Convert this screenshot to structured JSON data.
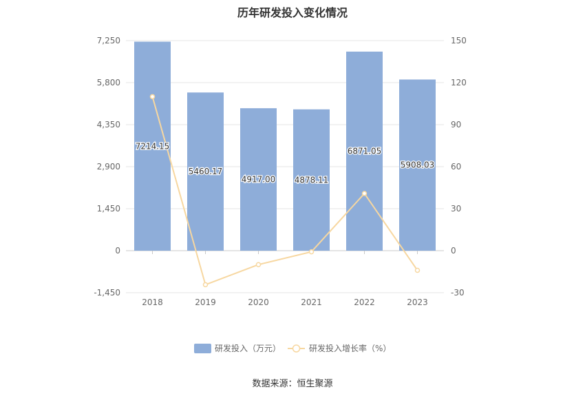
{
  "title": "历年研发投入变化情况",
  "source": "数据来源：恒生聚源",
  "colors": {
    "bar": "#8eadd9",
    "line": "#f7d7a0",
    "grid": "#e6e6e6",
    "axis_text": "#666666",
    "label_text": "#333333"
  },
  "chart_data": {
    "type": "bar",
    "title": "历年研发投入变化情况",
    "categories": [
      "2018",
      "2019",
      "2020",
      "2021",
      "2022",
      "2023"
    ],
    "series": [
      {
        "name": "研发投入（万元）",
        "type": "bar",
        "axis": "left",
        "values": [
          7214.15,
          5460.17,
          4917.0,
          4878.11,
          6871.05,
          5908.03
        ],
        "labels": [
          "7214.15",
          "5460.17",
          "4917.00",
          "4878.11",
          "6871.05",
          "5908.03"
        ]
      },
      {
        "name": "研发投入增长率（%）",
        "type": "line",
        "axis": "right",
        "values": [
          110,
          -24.3,
          -9.95,
          -0.79,
          40.86,
          -14.02
        ]
      }
    ],
    "y_left": {
      "min": -1450,
      "max": 7250,
      "ticks": [
        -1450,
        0,
        1450,
        2900,
        4350,
        5800,
        7250
      ],
      "tick_labels": [
        "-1,450",
        "0",
        "1,450",
        "2,900",
        "4,350",
        "5,800",
        "7,250"
      ]
    },
    "y_right": {
      "min": -30,
      "max": 150,
      "ticks": [
        -30,
        0,
        30,
        60,
        90,
        120,
        150
      ],
      "tick_labels": [
        "-30",
        "0",
        "30",
        "60",
        "90",
        "120",
        "150"
      ]
    },
    "grid": true,
    "legend": "bottom-center"
  }
}
